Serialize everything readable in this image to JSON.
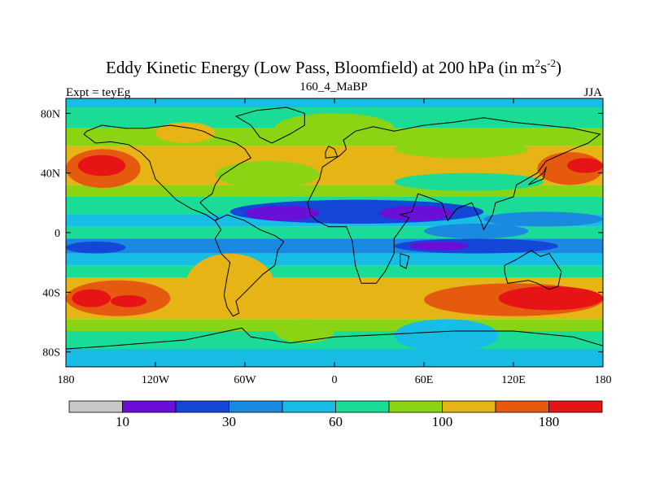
{
  "chart_data": {
    "type": "heatmap",
    "title": "Eddy Kinetic Energy (Low Pass, Bloomfield) at 200 hPa (in m",
    "title_sup_1": "2",
    "title_mid": "s",
    "title_sup_2": "-2",
    "title_end": ")",
    "left_label": "Expt = teyEg",
    "center_label": "160_4_MaBP",
    "right_label": "JJA",
    "x_range": [
      -180,
      180
    ],
    "y_range": [
      -90,
      90
    ],
    "x_ticks": [
      {
        "value": -180,
        "label": "180"
      },
      {
        "value": -120,
        "label": "120W"
      },
      {
        "value": -60,
        "label": "60W"
      },
      {
        "value": 0,
        "label": "0"
      },
      {
        "value": 60,
        "label": "60E"
      },
      {
        "value": 120,
        "label": "120E"
      },
      {
        "value": 180,
        "label": "180"
      }
    ],
    "y_ticks": [
      {
        "value": 80,
        "label": "80N"
      },
      {
        "value": 40,
        "label": "40N"
      },
      {
        "value": 0,
        "label": "0"
      },
      {
        "value": -40,
        "label": "40S"
      },
      {
        "value": -80,
        "label": "80S"
      }
    ],
    "colorbar": {
      "colors": [
        "#c8c8c8",
        "#6a0fd8",
        "#1446d8",
        "#1a8ae0",
        "#18bde6",
        "#1adc96",
        "#8ad414",
        "#e6b414",
        "#e65a0f",
        "#e61414"
      ],
      "labels": [
        {
          "boundary": 1,
          "label": "10"
        },
        {
          "boundary": 3,
          "label": "30"
        },
        {
          "boundary": 5,
          "label": "60"
        },
        {
          "boundary": 7,
          "label": "100"
        },
        {
          "boundary": 9,
          "label": "180"
        }
      ]
    },
    "bands": [
      {
        "lat_from": 90,
        "lat_to": 84,
        "level": 4
      },
      {
        "lat_from": 84,
        "lat_to": 70,
        "level": 5
      },
      {
        "lat_from": 70,
        "lat_to": 58,
        "level": 6
      },
      {
        "lat_from": 58,
        "lat_to": 32,
        "level": 7
      },
      {
        "lat_from": 32,
        "lat_to": 24,
        "level": 6
      },
      {
        "lat_from": 24,
        "lat_to": 12,
        "level": 5
      },
      {
        "lat_from": 12,
        "lat_to": 4,
        "level": 4
      },
      {
        "lat_from": 4,
        "lat_to": -4,
        "level": 5
      },
      {
        "lat_from": -4,
        "lat_to": -14,
        "level": 3
      },
      {
        "lat_from": -14,
        "lat_to": -22,
        "level": 4
      },
      {
        "lat_from": -22,
        "lat_to": -30,
        "level": 5
      },
      {
        "lat_from": -30,
        "lat_to": -58,
        "level": 7
      },
      {
        "lat_from": -58,
        "lat_to": -66,
        "level": 6
      },
      {
        "lat_from": -66,
        "lat_to": -78,
        "level": 5
      },
      {
        "lat_from": -78,
        "lat_to": -90,
        "level": 4
      }
    ],
    "features": [
      {
        "lon_from": -180,
        "lon_to": -130,
        "lat_from": 56,
        "lat_to": 30,
        "level": 8
      },
      {
        "lon_from": -172,
        "lon_to": -140,
        "lat_from": 52,
        "lat_to": 38,
        "level": 9
      },
      {
        "lon_from": 136,
        "lon_to": 180,
        "lat_from": 54,
        "lat_to": 32,
        "level": 8
      },
      {
        "lon_from": 156,
        "lon_to": 180,
        "lat_from": 50,
        "lat_to": 40,
        "level": 9
      },
      {
        "lon_from": -120,
        "lon_to": -80,
        "lat_from": 74,
        "lat_to": 60,
        "level": 7
      },
      {
        "lon_from": -80,
        "lon_to": -10,
        "lat_from": 48,
        "lat_to": 30,
        "level": 6
      },
      {
        "lon_from": -40,
        "lon_to": 40,
        "lat_from": 80,
        "lat_to": 60,
        "level": 6
      },
      {
        "lon_from": 40,
        "lon_to": 130,
        "lat_from": 62,
        "lat_to": 50,
        "level": 6
      },
      {
        "lon_from": 40,
        "lon_to": 140,
        "lat_from": 40,
        "lat_to": 28,
        "level": 5
      },
      {
        "lon_from": -70,
        "lon_to": 100,
        "lat_from": 22,
        "lat_to": 6,
        "level": 2
      },
      {
        "lon_from": -60,
        "lon_to": -10,
        "lat_from": 18,
        "lat_to": 8,
        "level": 1
      },
      {
        "lon_from": 30,
        "lon_to": 80,
        "lat_from": 18,
        "lat_to": 8,
        "level": 1
      },
      {
        "lon_from": 100,
        "lon_to": 180,
        "lat_from": 14,
        "lat_to": 4,
        "level": 3
      },
      {
        "lon_from": 60,
        "lon_to": 130,
        "lat_from": 6,
        "lat_to": -4,
        "level": 3
      },
      {
        "lon_from": -180,
        "lon_to": -140,
        "lat_from": -6,
        "lat_to": -14,
        "level": 2
      },
      {
        "lon_from": 40,
        "lon_to": 150,
        "lat_from": -4,
        "lat_to": -14,
        "level": 2
      },
      {
        "lon_from": 50,
        "lon_to": 90,
        "lat_from": -6,
        "lat_to": -12,
        "level": 1
      },
      {
        "lon_from": -100,
        "lon_to": -40,
        "lat_from": -14,
        "lat_to": -58,
        "level": 7
      },
      {
        "lon_from": -40,
        "lon_to": 0,
        "lat_from": -58,
        "lat_to": -74,
        "level": 6
      },
      {
        "lon_from": 40,
        "lon_to": 110,
        "lat_from": -58,
        "lat_to": -80,
        "level": 4
      },
      {
        "lon_from": -180,
        "lon_to": -110,
        "lat_from": -32,
        "lat_to": -56,
        "level": 8
      },
      {
        "lon_from": -176,
        "lon_to": -150,
        "lat_from": -38,
        "lat_to": -50,
        "level": 9
      },
      {
        "lon_from": -150,
        "lon_to": -126,
        "lat_from": -42,
        "lat_to": -50,
        "level": 9
      },
      {
        "lon_from": 60,
        "lon_to": 180,
        "lat_from": -34,
        "lat_to": -56,
        "level": 8
      },
      {
        "lon_from": 110,
        "lon_to": 180,
        "lat_from": -36,
        "lat_to": -52,
        "level": 9
      }
    ],
    "coastlines": [
      {
        "name": "north-america-coast",
        "points": [
          [
            -168,
            66
          ],
          [
            -160,
            60
          ],
          [
            -150,
            61
          ],
          [
            -138,
            59
          ],
          [
            -130,
            54
          ],
          [
            -124,
            48
          ],
          [
            -120,
            36
          ],
          [
            -112,
            28
          ],
          [
            -106,
            22
          ],
          [
            -96,
            16
          ],
          [
            -86,
            12
          ],
          [
            -80,
            8
          ],
          [
            -78,
            10
          ],
          [
            -84,
            14
          ],
          [
            -90,
            20
          ],
          [
            -88,
            22
          ],
          [
            -82,
            26
          ],
          [
            -80,
            32
          ],
          [
            -76,
            38
          ],
          [
            -70,
            42
          ],
          [
            -64,
            46
          ],
          [
            -56,
            50
          ],
          [
            -60,
            56
          ],
          [
            -66,
            60
          ],
          [
            -72,
            62
          ],
          [
            -80,
            64
          ],
          [
            -88,
            68
          ],
          [
            -96,
            70
          ],
          [
            -110,
            72
          ],
          [
            -126,
            70
          ],
          [
            -140,
            70
          ],
          [
            -156,
            72
          ],
          [
            -166,
            68
          ],
          [
            -168,
            66
          ]
        ]
      },
      {
        "name": "greenland-coast",
        "points": [
          [
            -52,
            82
          ],
          [
            -32,
            84
          ],
          [
            -20,
            80
          ],
          [
            -20,
            72
          ],
          [
            -30,
            66
          ],
          [
            -42,
            60
          ],
          [
            -50,
            64
          ],
          [
            -56,
            72
          ],
          [
            -66,
            78
          ],
          [
            -52,
            82
          ]
        ]
      },
      {
        "name": "south-america-coast",
        "points": [
          [
            -80,
            8
          ],
          [
            -76,
            2
          ],
          [
            -80,
            -4
          ],
          [
            -76,
            -14
          ],
          [
            -70,
            -20
          ],
          [
            -72,
            -30
          ],
          [
            -74,
            -42
          ],
          [
            -72,
            -50
          ],
          [
            -68,
            -56
          ],
          [
            -64,
            -54
          ],
          [
            -66,
            -46
          ],
          [
            -58,
            -38
          ],
          [
            -48,
            -28
          ],
          [
            -40,
            -22
          ],
          [
            -38,
            -12
          ],
          [
            -34,
            -6
          ],
          [
            -40,
            -2
          ],
          [
            -50,
            2
          ],
          [
            -60,
            8
          ],
          [
            -72,
            12
          ],
          [
            -80,
            8
          ]
        ]
      },
      {
        "name": "eurasia-africa-coast",
        "points": [
          [
            -10,
            36
          ],
          [
            -8,
            44
          ],
          [
            -2,
            48
          ],
          [
            4,
            52
          ],
          [
            8,
            56
          ],
          [
            6,
            62
          ],
          [
            14,
            68
          ],
          [
            26,
            71
          ],
          [
            40,
            68
          ],
          [
            60,
            72
          ],
          [
            80,
            74
          ],
          [
            100,
            77
          ],
          [
            120,
            74
          ],
          [
            140,
            72
          ],
          [
            160,
            70
          ],
          [
            178,
            66
          ],
          [
            170,
            60
          ],
          [
            160,
            56
          ],
          [
            142,
            48
          ],
          [
            136,
            40
          ],
          [
            122,
            32
          ],
          [
            120,
            24
          ],
          [
            108,
            20
          ],
          [
            106,
            12
          ],
          [
            100,
            2
          ],
          [
            98,
            8
          ],
          [
            92,
            20
          ],
          [
            82,
            16
          ],
          [
            76,
            8
          ],
          [
            72,
            20
          ],
          [
            62,
            24
          ],
          [
            56,
            26
          ],
          [
            52,
            14
          ],
          [
            44,
            12
          ],
          [
            50,
            10
          ],
          [
            40,
            -4
          ],
          [
            40,
            -14
          ],
          [
            34,
            -26
          ],
          [
            28,
            -34
          ],
          [
            18,
            -34
          ],
          [
            14,
            -22
          ],
          [
            12,
            -6
          ],
          [
            8,
            4
          ],
          [
            -4,
            4
          ],
          [
            -12,
            8
          ],
          [
            -16,
            12
          ],
          [
            -18,
            20
          ],
          [
            -14,
            28
          ],
          [
            -10,
            36
          ]
        ]
      },
      {
        "name": "australia-coast",
        "points": [
          [
            114,
            -22
          ],
          [
            122,
            -18
          ],
          [
            132,
            -12
          ],
          [
            138,
            -16
          ],
          [
            144,
            -14
          ],
          [
            152,
            -26
          ],
          [
            150,
            -36
          ],
          [
            144,
            -38
          ],
          [
            136,
            -34
          ],
          [
            130,
            -32
          ],
          [
            116,
            -34
          ],
          [
            114,
            -26
          ],
          [
            114,
            -22
          ]
        ]
      },
      {
        "name": "antarctica-coast",
        "points": [
          [
            -180,
            -78
          ],
          [
            -150,
            -76
          ],
          [
            -100,
            -72
          ],
          [
            -62,
            -64
          ],
          [
            -56,
            -70
          ],
          [
            -30,
            -74
          ],
          [
            0,
            -70
          ],
          [
            40,
            -68
          ],
          [
            80,
            -66
          ],
          [
            120,
            -66
          ],
          [
            160,
            -70
          ],
          [
            180,
            -76
          ]
        ]
      },
      {
        "name": "britain-coast",
        "points": [
          [
            -6,
            50
          ],
          [
            2,
            51
          ],
          [
            0,
            56
          ],
          [
            -4,
            58
          ],
          [
            -6,
            54
          ],
          [
            -6,
            50
          ]
        ]
      },
      {
        "name": "japan-coast",
        "points": [
          [
            130,
            32
          ],
          [
            140,
            36
          ],
          [
            142,
            44
          ],
          [
            140,
            40
          ],
          [
            132,
            34
          ],
          [
            130,
            32
          ]
        ]
      },
      {
        "name": "madagascar-coast",
        "points": [
          [
            44,
            -14
          ],
          [
            50,
            -16
          ],
          [
            48,
            -24
          ],
          [
            44,
            -22
          ],
          [
            44,
            -14
          ]
        ]
      }
    ]
  }
}
